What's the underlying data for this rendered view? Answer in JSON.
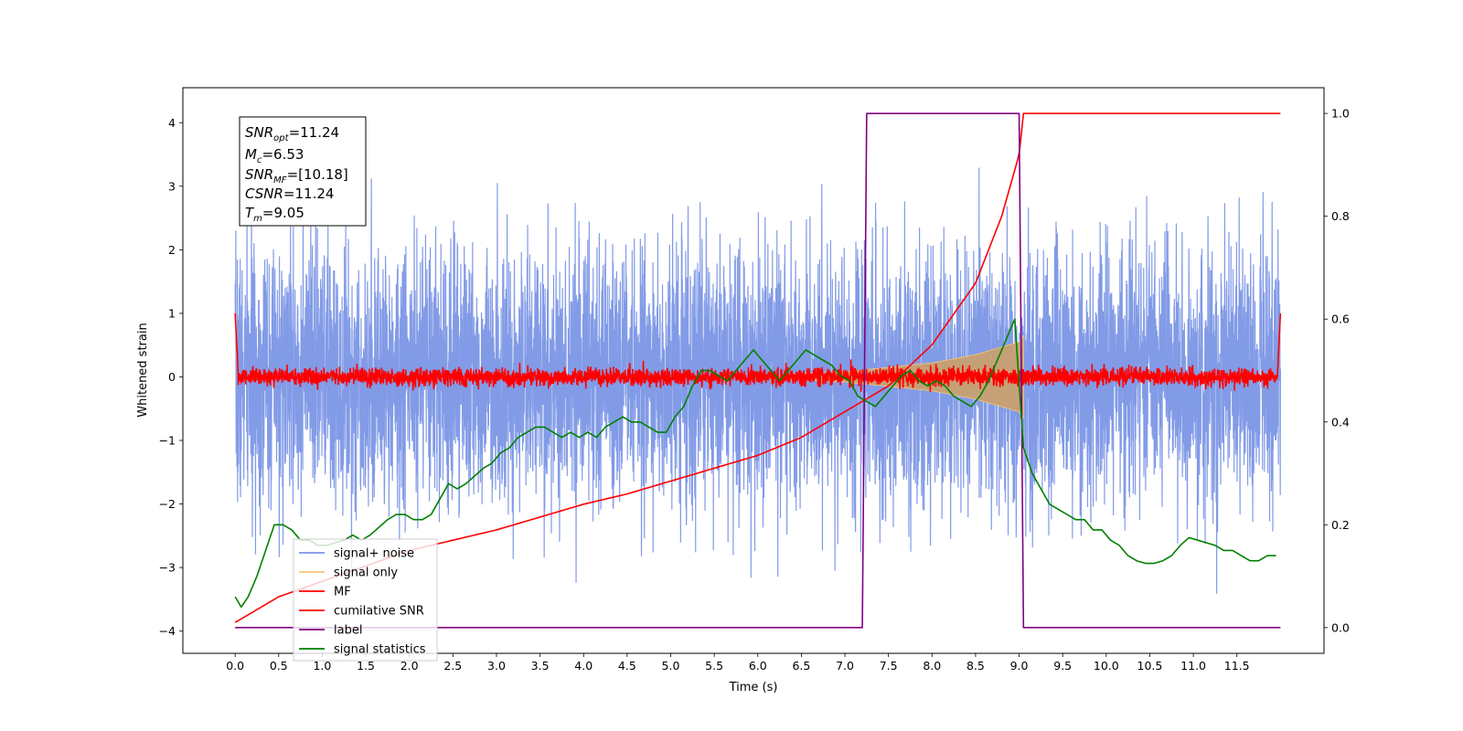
{
  "chart_data": {
    "type": "line",
    "xlabel": "Time (s)",
    "ylabel": "Whitened strain",
    "x_range": [
      -0.6,
      12.5
    ],
    "y_left_range": [
      -4.35,
      4.55
    ],
    "y_right_range": [
      -0.05,
      1.05
    ],
    "x_ticks": [
      "0.0",
      "0.5",
      "1.0",
      "1.5",
      "2.0",
      "2.5",
      "3.0",
      "3.5",
      "4.0",
      "4.5",
      "5.0",
      "5.5",
      "6.0",
      "6.5",
      "7.0",
      "7.5",
      "8.0",
      "8.5",
      "9.0",
      "9.5",
      "10.0",
      "10.5",
      "11.0",
      "11.5"
    ],
    "y_left_ticks": [
      "4",
      "3",
      "2",
      "1",
      "0",
      "−1",
      "−2",
      "−3",
      "−4"
    ],
    "y_right_ticks": [
      "1.0",
      "0.8",
      "0.6",
      "0.4",
      "0.2",
      "0.0"
    ],
    "annotation": {
      "snr_opt": "=11.24",
      "mc": "=6.53",
      "snr_mf": "=[10.18]",
      "csnr": "=11.24",
      "tm": "=9.05"
    },
    "series": [
      {
        "name": "signal+ noise",
        "color": "#7b96e6",
        "axis": "left",
        "description_range": "noise amplitude ~[-3.3, 3.6] over t 0.0–12.0"
      },
      {
        "name": "signal only",
        "color": "#f5c67a",
        "axis": "left",
        "envelope": {
          "t": [
            6.0,
            7.0,
            8.0,
            8.5,
            9.0,
            9.05
          ],
          "amp": [
            0.02,
            0.08,
            0.22,
            0.35,
            0.55,
            0.65
          ]
        }
      },
      {
        "name": "MF",
        "color": "#ff0000",
        "axis": "left",
        "noise_amplitude": 0.15,
        "edge_spike": 1.0
      },
      {
        "name": "cumilative SNR",
        "color": "#ff0000",
        "axis": "right",
        "x": [
          0.0,
          0.5,
          1.0,
          1.5,
          2.0,
          2.5,
          3.0,
          3.5,
          4.0,
          4.5,
          5.0,
          5.5,
          6.0,
          6.5,
          7.0,
          7.5,
          8.0,
          8.5,
          8.8,
          9.0,
          9.05,
          12.0
        ],
        "y": [
          0.01,
          0.06,
          0.09,
          0.12,
          0.15,
          0.17,
          0.19,
          0.215,
          0.24,
          0.26,
          0.285,
          0.31,
          0.335,
          0.37,
          0.42,
          0.47,
          0.55,
          0.67,
          0.8,
          0.92,
          1.0,
          1.0
        ]
      },
      {
        "name": "label",
        "color": "#800080",
        "axis": "right",
        "x": [
          0.0,
          7.2,
          7.25,
          9.0,
          9.05,
          12.0
        ],
        "y": [
          0.0,
          0.0,
          1.0,
          1.0,
          0.0,
          0.0
        ]
      },
      {
        "name": "signal statistics",
        "color": "#008000",
        "axis": "right",
        "x": [
          0.0,
          0.07,
          0.15,
          0.25,
          0.35,
          0.45,
          0.55,
          0.65,
          0.75,
          0.85,
          0.95,
          1.05,
          1.15,
          1.25,
          1.35,
          1.45,
          1.55,
          1.65,
          1.75,
          1.85,
          1.95,
          2.05,
          2.15,
          2.25,
          2.35,
          2.45,
          2.55,
          2.65,
          2.75,
          2.85,
          2.95,
          3.05,
          3.15,
          3.25,
          3.35,
          3.45,
          3.55,
          3.65,
          3.75,
          3.85,
          3.95,
          4.05,
          4.15,
          4.25,
          4.35,
          4.45,
          4.55,
          4.65,
          4.75,
          4.85,
          4.95,
          5.05,
          5.15,
          5.25,
          5.35,
          5.45,
          5.55,
          5.65,
          5.75,
          5.85,
          5.95,
          6.05,
          6.15,
          6.25,
          6.35,
          6.45,
          6.55,
          6.65,
          6.75,
          6.85,
          6.95,
          7.05,
          7.15,
          7.25,
          7.35,
          7.45,
          7.55,
          7.65,
          7.75,
          7.85,
          7.95,
          8.05,
          8.15,
          8.25,
          8.35,
          8.45,
          8.55,
          8.65,
          8.75,
          8.85,
          8.95,
          9.05,
          9.15,
          9.25,
          9.35,
          9.45,
          9.55,
          9.65,
          9.75,
          9.85,
          9.95,
          10.05,
          10.15,
          10.25,
          10.35,
          10.45,
          10.55,
          10.65,
          10.75,
          10.85,
          10.95,
          11.05,
          11.15,
          11.25,
          11.35,
          11.45,
          11.55,
          11.65,
          11.75,
          11.85,
          11.95
        ],
        "y": [
          0.06,
          0.04,
          0.06,
          0.1,
          0.15,
          0.2,
          0.2,
          0.19,
          0.17,
          0.17,
          0.16,
          0.16,
          0.165,
          0.17,
          0.18,
          0.17,
          0.18,
          0.195,
          0.21,
          0.22,
          0.22,
          0.21,
          0.21,
          0.22,
          0.25,
          0.28,
          0.27,
          0.28,
          0.295,
          0.31,
          0.32,
          0.34,
          0.35,
          0.37,
          0.38,
          0.39,
          0.39,
          0.38,
          0.37,
          0.38,
          0.37,
          0.38,
          0.37,
          0.39,
          0.4,
          0.41,
          0.4,
          0.4,
          0.39,
          0.38,
          0.38,
          0.41,
          0.43,
          0.47,
          0.5,
          0.5,
          0.49,
          0.48,
          0.5,
          0.52,
          0.54,
          0.52,
          0.5,
          0.48,
          0.5,
          0.52,
          0.54,
          0.53,
          0.52,
          0.51,
          0.49,
          0.48,
          0.45,
          0.44,
          0.43,
          0.45,
          0.47,
          0.49,
          0.5,
          0.48,
          0.47,
          0.48,
          0.47,
          0.45,
          0.44,
          0.43,
          0.45,
          0.48,
          0.52,
          0.56,
          0.6,
          0.35,
          0.3,
          0.27,
          0.24,
          0.23,
          0.22,
          0.21,
          0.21,
          0.19,
          0.19,
          0.17,
          0.16,
          0.14,
          0.13,
          0.125,
          0.125,
          0.13,
          0.14,
          0.16,
          0.175,
          0.17,
          0.165,
          0.16,
          0.15,
          0.15,
          0.14,
          0.13,
          0.13,
          0.14,
          0.14
        ]
      }
    ],
    "legend_location": "lower-left"
  }
}
